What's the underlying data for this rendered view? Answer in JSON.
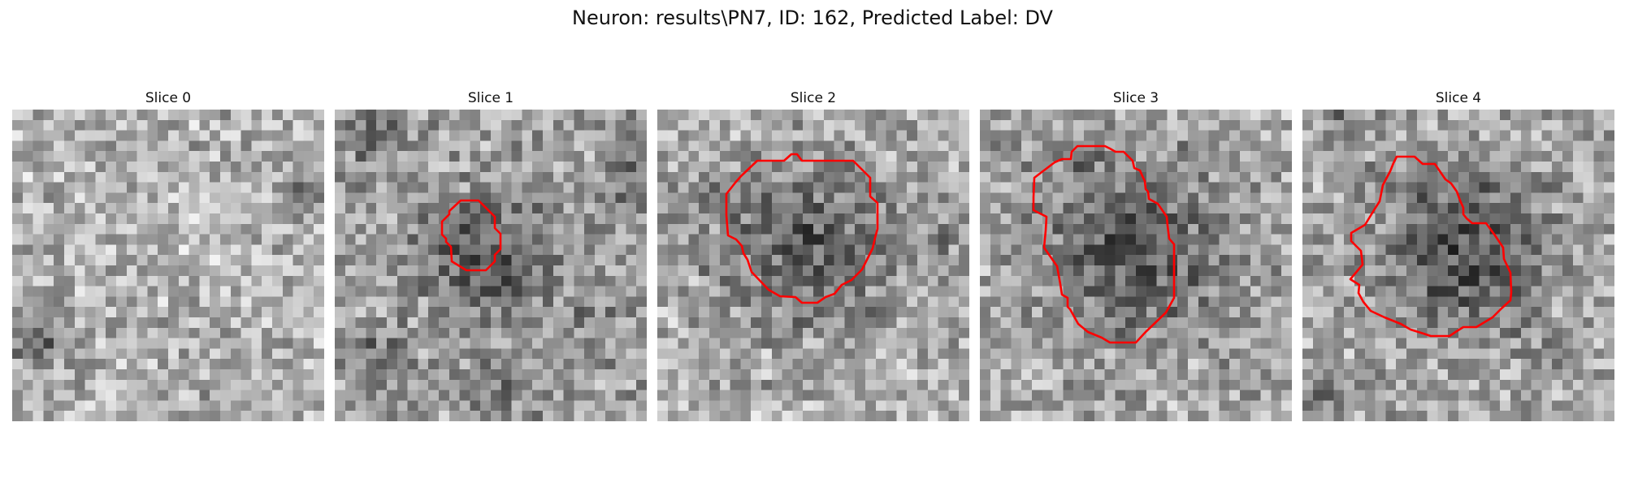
{
  "figure": {
    "title": "Neuron: results\\PN7, ID: 162, Predicted Label: DV"
  },
  "colors": {
    "contour": "#ff0000",
    "background": "#ffffff"
  },
  "slices": [
    {
      "label": "Slice 0",
      "has_contour": false
    },
    {
      "label": "Slice 1",
      "has_contour": true
    },
    {
      "label": "Slice 2",
      "has_contour": true
    },
    {
      "label": "Slice 3",
      "has_contour": true
    },
    {
      "label": "Slice 4",
      "has_contour": true
    }
  ]
}
